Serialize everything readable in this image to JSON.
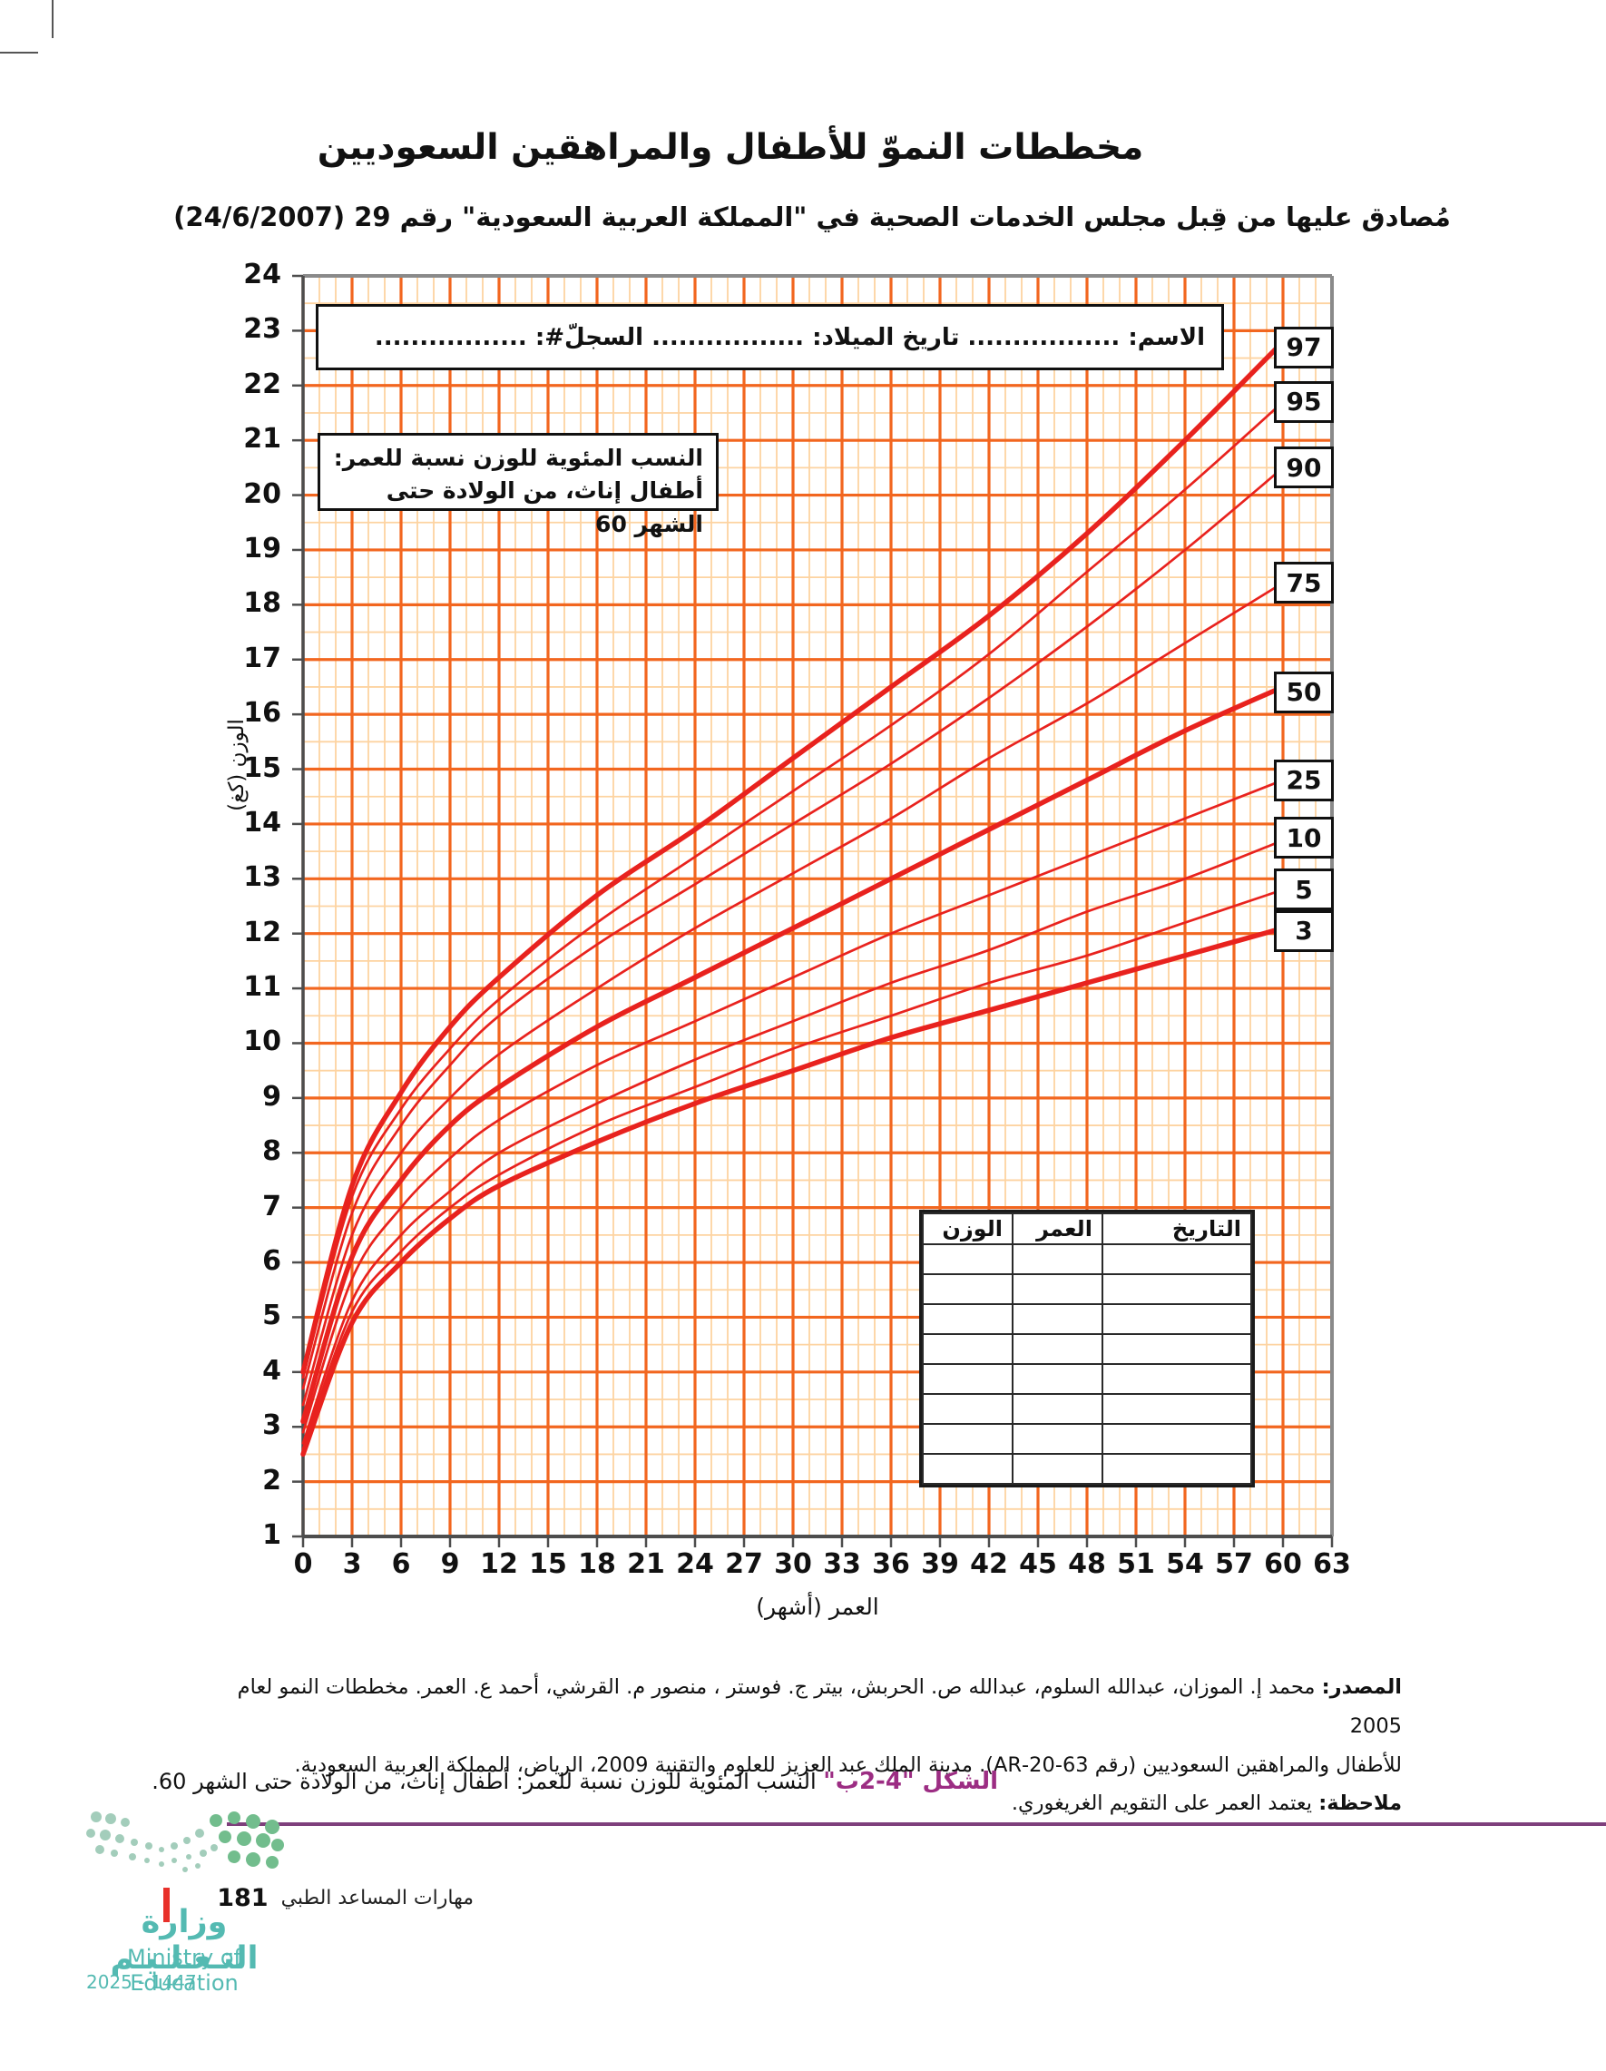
{
  "page": {
    "title": "مخططات النموّ للأطفال والمراهقين السعوديين",
    "subtitle": "مُصادق عليها من قِبل مجلس الخدمات الصحية في \"المملكة العربية السعودية\" رقم 29 (24/6/2007)"
  },
  "chart": {
    "name_line": "الاسم: ................. تاريخ الميلاد: ................. السجلّ#: .................",
    "info_line1": "النسب المئوية للوزن نسبة للعمر:",
    "info_line2": "أطفال إناث، من الولادة حتى الشهر 60",
    "record_table": {
      "headers": [
        "التاريخ",
        "العمر",
        "الوزن"
      ],
      "empty_rows": 8
    }
  },
  "chart_data": {
    "type": "line",
    "title": "النسب المئوية للوزن نسبة للعمر: أطفال إناث، من الولادة حتى الشهر 60",
    "xlabel": "العمر (أشهر)",
    "ylabel": "الوزن (كغ)",
    "xlim": [
      0,
      63
    ],
    "ylim": [
      1,
      24
    ],
    "x_tick_step": 3,
    "x_minor_step": 1,
    "y_tick_step": 1,
    "y_minor_step": 0.5,
    "grid": true,
    "legend_position": "right-edge-boxes",
    "x": [
      0,
      3,
      6,
      9,
      12,
      18,
      24,
      30,
      36,
      42,
      48,
      54,
      60
    ],
    "series": [
      {
        "name": "97",
        "thick": true,
        "label_y": 22.7,
        "values": [
          4.0,
          7.4,
          9.1,
          10.3,
          11.2,
          12.7,
          13.9,
          15.2,
          16.5,
          17.8,
          19.3,
          21.0,
          22.8
        ]
      },
      {
        "name": "95",
        "thick": false,
        "label_y": 21.7,
        "values": [
          3.9,
          7.2,
          8.8,
          9.9,
          10.8,
          12.2,
          13.4,
          14.6,
          15.8,
          17.1,
          18.6,
          20.1,
          21.7
        ]
      },
      {
        "name": "90",
        "thick": false,
        "label_y": 20.5,
        "values": [
          3.7,
          6.9,
          8.5,
          9.6,
          10.5,
          11.8,
          12.9,
          14.0,
          15.1,
          16.3,
          17.6,
          19.0,
          20.5
        ]
      },
      {
        "name": "75",
        "thick": false,
        "label_y": 18.4,
        "values": [
          3.4,
          6.5,
          8.0,
          9.0,
          9.8,
          11.0,
          12.1,
          13.1,
          14.1,
          15.2,
          16.2,
          17.3,
          18.4
        ]
      },
      {
        "name": "50",
        "thick": true,
        "label_y": 16.4,
        "values": [
          3.1,
          6.1,
          7.5,
          8.5,
          9.2,
          10.3,
          11.2,
          12.1,
          13.0,
          13.9,
          14.8,
          15.7,
          16.5
        ]
      },
      {
        "name": "25",
        "thick": false,
        "label_y": 14.8,
        "values": [
          2.9,
          5.7,
          7.0,
          7.9,
          8.6,
          9.6,
          10.4,
          11.2,
          12.0,
          12.7,
          13.4,
          14.1,
          14.8
        ]
      },
      {
        "name": "10",
        "thick": false,
        "label_y": 13.75,
        "values": [
          2.7,
          5.3,
          6.5,
          7.3,
          8.0,
          8.9,
          9.7,
          10.4,
          11.1,
          11.7,
          12.4,
          13.0,
          13.7
        ]
      },
      {
        "name": "5",
        "thick": false,
        "label_y": 12.8,
        "values": [
          2.6,
          5.1,
          6.2,
          7.0,
          7.6,
          8.5,
          9.2,
          9.9,
          10.5,
          11.1,
          11.6,
          12.2,
          12.8
        ]
      },
      {
        "name": "3",
        "thick": true,
        "label_y": 12.05,
        "values": [
          2.5,
          4.9,
          6.0,
          6.8,
          7.4,
          8.2,
          8.9,
          9.5,
          10.1,
          10.6,
          11.1,
          11.6,
          12.1
        ]
      }
    ]
  },
  "footnotes": {
    "source_label": "المصدر:",
    "source_line1": "محمد إ. الموزان، عبدالله السلوم، عبدالله ص. الحربش، بيتر ج. فوستر ، منصور م. القرشي، أحمد ع. العمر. مخططات النمو لعام 2005",
    "source_line2": "للأطفال والمراهقين السعوديين (رقم 63-20-AR). مدينة الملك عبد العزيز للعلوم والتقنية 2009، الرياض، المملكة العربية السعودية.",
    "note_label": "ملاحظة:",
    "note_text": "يعتمد العمر على التقويم الغريغوري."
  },
  "caption": {
    "label": "الشكل \"4-2ب\"",
    "text": "النسب المئوية للوزن نسبة للعمر: أطفال إناث، من الولادة حتى الشهر 60."
  },
  "footer": {
    "course": "مهارات المساعد الطبي",
    "page_number": "181",
    "ministry_ar": "وزارة التـعـلـيـم",
    "ministry_en": "Ministry of Education",
    "years": "2025 - 1447"
  },
  "colors": {
    "curve": "#e8221e",
    "grid_major": "#f2661f",
    "grid_minor": "#fdd3a1",
    "plot_border": "#8a8a8a",
    "axis": "#4d4d4d",
    "caption_accent": "#9c2d83",
    "footer_line": "#7e3f7c",
    "logo_teal": "#54bab2",
    "logo_green_light": "#a3cdbb",
    "logo_green": "#72bd8d",
    "marker_red": "#e8302a"
  }
}
